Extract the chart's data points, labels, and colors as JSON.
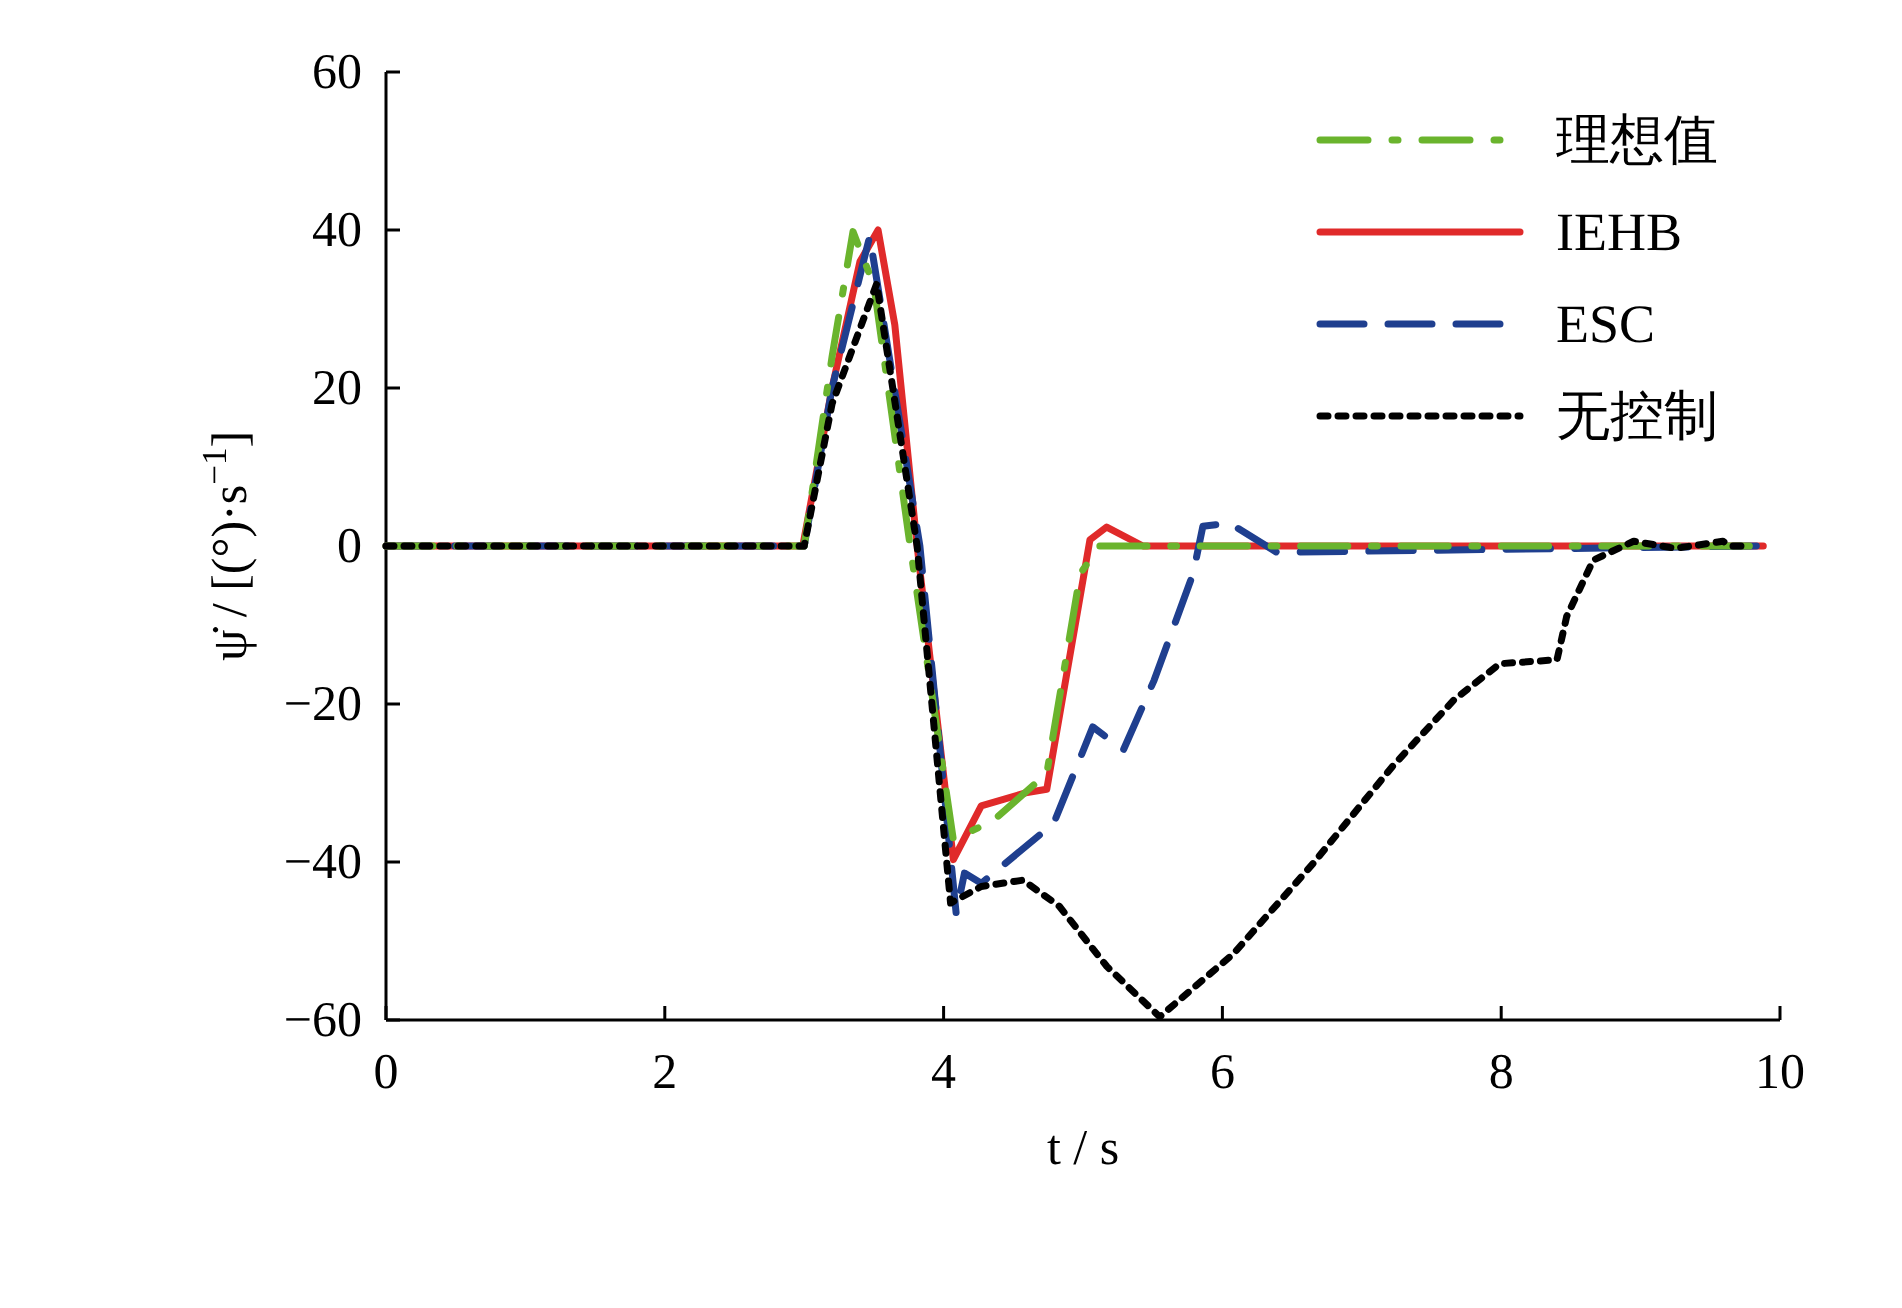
{
  "chart_data": {
    "type": "line",
    "xlabel": "t / s",
    "ylabel": "ψ̇ / [(°)·s$^{−1}$]",
    "xlim": [
      0,
      10
    ],
    "ylim": [
      -60,
      60
    ],
    "xticks": [
      0,
      2,
      4,
      6,
      8,
      10
    ],
    "yticks": [
      -60,
      -40,
      -20,
      0,
      20,
      40,
      60
    ],
    "grid": false,
    "legend": "top right",
    "series": [
      {
        "name": "理想值",
        "color": "#6ab42d",
        "line_style": "dashdot",
        "x": [
          0,
          3.0,
          3.2,
          3.35,
          3.5,
          3.76,
          4.07,
          4.36,
          4.74,
          4.98,
          5.12,
          9.78
        ],
        "values": [
          0,
          0,
          24,
          39.8,
          33,
          0,
          -37.2,
          -34.7,
          -28.8,
          -3.5,
          0,
          0
        ]
      },
      {
        "name": "IEHB",
        "color": "#e02a2a",
        "line_style": "solid",
        "x": [
          0,
          2.99,
          3.2,
          3.4,
          3.53,
          3.65,
          3.81,
          4.07,
          4.27,
          4.6,
          4.74,
          5.05,
          5.17,
          5.43,
          9.88
        ],
        "values": [
          0,
          0,
          20,
          36,
          40,
          28,
          0,
          -39.7,
          -32.9,
          -31.2,
          -30.8,
          0.8,
          2.4,
          0,
          0
        ]
      },
      {
        "name": "ESC",
        "color": "#1f3f8f",
        "line_style": "dashed",
        "x": [
          0,
          3.0,
          3.2,
          3.47,
          3.83,
          4.09,
          4.15,
          4.27,
          4.79,
          5.07,
          5.29,
          5.51,
          5.79,
          5.86,
          6.05,
          6.39,
          9.83
        ],
        "values": [
          0,
          0,
          20,
          39.2,
          0,
          -46.5,
          -41.4,
          -42.7,
          -35.1,
          -22.9,
          -25.8,
          -17,
          -3.5,
          2.5,
          2.9,
          -0.8,
          0
        ]
      },
      {
        "name": "无控制",
        "color": "#000000",
        "line_style": "dotted",
        "x": [
          0,
          3.0,
          3.2,
          3.52,
          3.81,
          4.05,
          4.27,
          4.57,
          4.83,
          5.17,
          5.55,
          6.08,
          6.65,
          7.22,
          7.66,
          7.99,
          8.4,
          8.47,
          8.66,
          8.95,
          9.25,
          9.59,
          9.66,
          9.72
        ],
        "values": [
          0,
          0,
          18,
          33.2,
          0,
          -45.2,
          -43.1,
          -42.3,
          -45.6,
          -53.2,
          -59.6,
          -51.6,
          -40.2,
          -27.9,
          -19.5,
          -14.9,
          -14.4,
          -8.9,
          -1.8,
          0.6,
          -0.3,
          0.6,
          0,
          0
        ]
      }
    ]
  }
}
